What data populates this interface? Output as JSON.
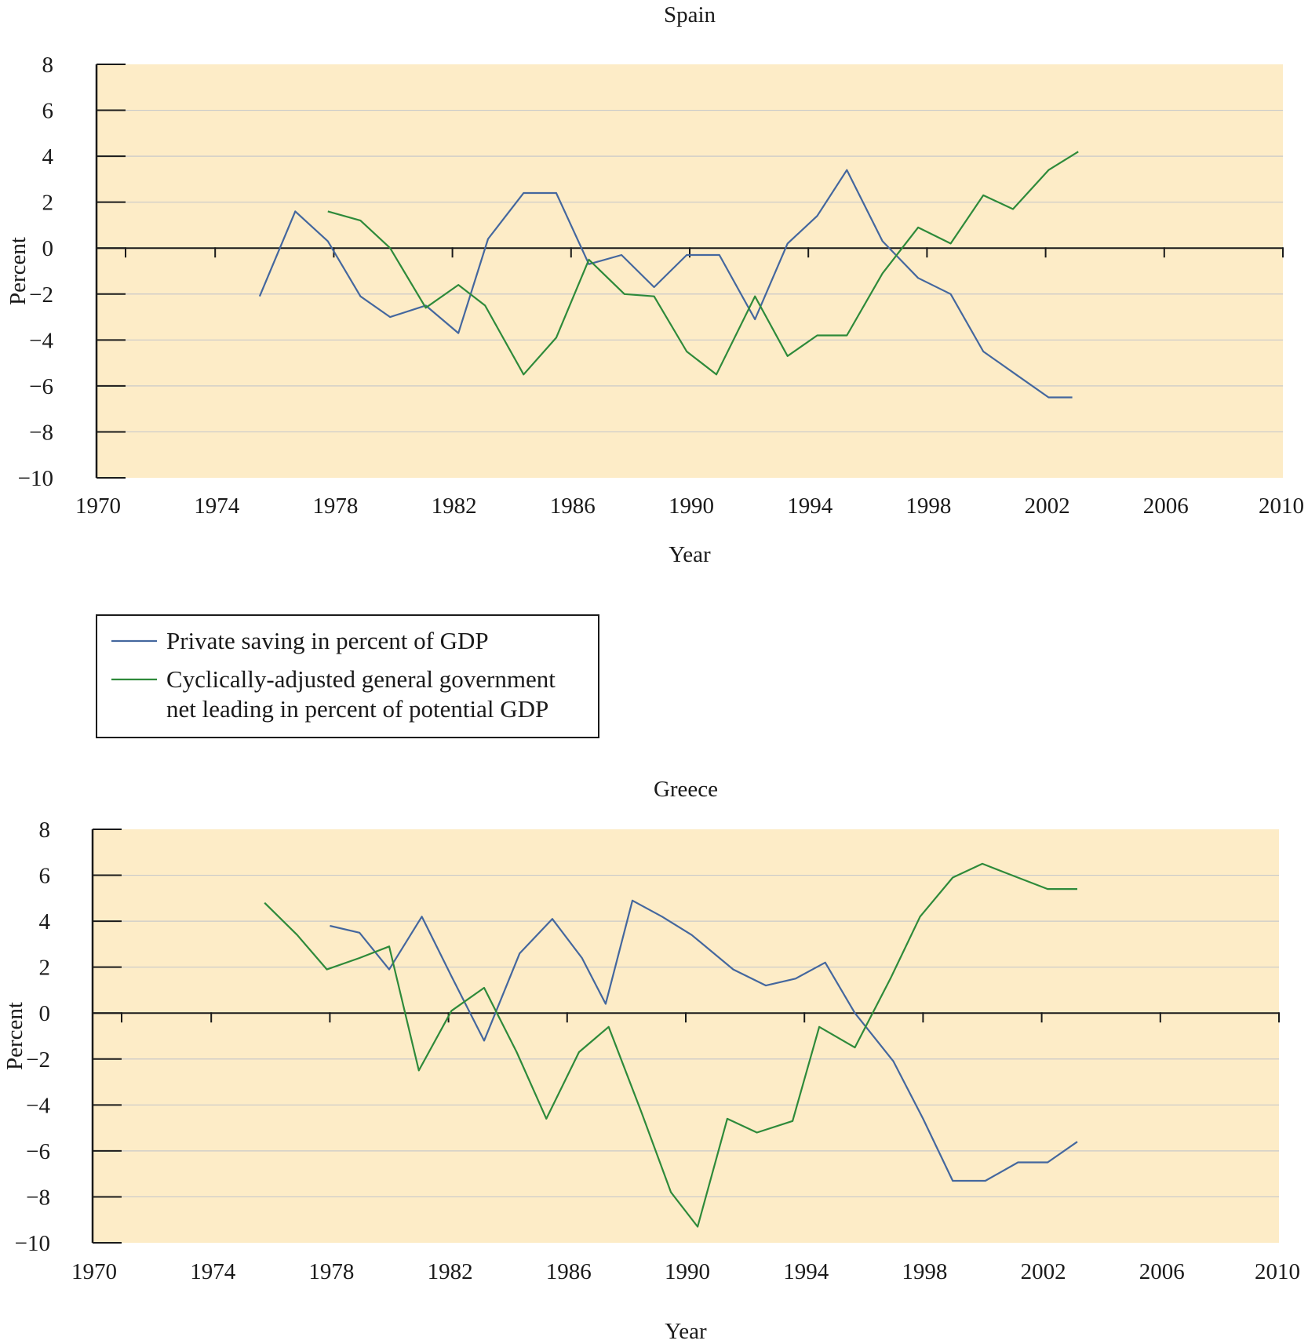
{
  "colors": {
    "private_saving": "#44679e",
    "government_lending": "#2e8a3a",
    "plot_background": "#fdecc7"
  },
  "legend": {
    "items": [
      {
        "series": "private_saving",
        "lines": [
          "Private saving in percent of GDP"
        ]
      },
      {
        "series": "government_lending",
        "lines": [
          "Cyclically-adjusted general government",
          "net leading in percent of potential GDP"
        ]
      }
    ]
  },
  "chart_data": [
    {
      "type": "line",
      "title": "Spain",
      "xlabel": "Year",
      "ylabel": "Percent",
      "xlim": [
        1970,
        2010
      ],
      "ylim": [
        -10,
        8
      ],
      "x_ticks": [
        "1970",
        "1974",
        "1978",
        "1982",
        "1986",
        "1990",
        "1994",
        "1998",
        "2002",
        "2006",
        "2010"
      ],
      "y_ticks": [
        "8",
        "6",
        "4",
        "2",
        "0",
        "−2",
        "−4",
        "−6",
        "−8",
        "−10"
      ],
      "grid": true,
      "series": [
        {
          "key": "private_saving",
          "name": "Private saving in percent of GDP",
          "points": [
            [
              1975.5,
              -2.1
            ],
            [
              1976.7,
              1.6
            ],
            [
              1977.8,
              0.3
            ],
            [
              1978.9,
              -2.1
            ],
            [
              1979.9,
              -3.0
            ],
            [
              1981.1,
              -2.5
            ],
            [
              1982.2,
              -3.7
            ],
            [
              1983.2,
              0.4
            ],
            [
              1984.4,
              2.4
            ],
            [
              1985.5,
              2.4
            ],
            [
              1986.6,
              -0.7
            ],
            [
              1987.7,
              -0.3
            ],
            [
              1988.8,
              -1.7
            ],
            [
              1989.9,
              -0.3
            ],
            [
              1991.0,
              -0.3
            ],
            [
              1992.2,
              -3.1
            ],
            [
              1993.3,
              0.2
            ],
            [
              1994.3,
              1.4
            ],
            [
              1995.3,
              3.4
            ],
            [
              1996.5,
              0.3
            ],
            [
              1997.7,
              -1.3
            ],
            [
              1998.8,
              -2.0
            ],
            [
              1999.9,
              -4.5
            ],
            [
              2001.0,
              -5.5
            ],
            [
              2002.1,
              -6.5
            ],
            [
              2002.9,
              -6.5
            ]
          ]
        },
        {
          "key": "government_lending",
          "name": "Cyclically-adjusted general government net leading in percent of potential GDP",
          "points": [
            [
              1977.8,
              1.6
            ],
            [
              1978.9,
              1.2
            ],
            [
              1979.9,
              0.0
            ],
            [
              1981.1,
              -2.6
            ],
            [
              1982.2,
              -1.6
            ],
            [
              1983.1,
              -2.5
            ],
            [
              1984.4,
              -5.5
            ],
            [
              1985.5,
              -3.9
            ],
            [
              1986.6,
              -0.5
            ],
            [
              1987.8,
              -2.0
            ],
            [
              1988.8,
              -2.1
            ],
            [
              1989.9,
              -4.5
            ],
            [
              1990.9,
              -5.5
            ],
            [
              1992.2,
              -2.1
            ],
            [
              1993.3,
              -4.7
            ],
            [
              1994.3,
              -3.8
            ],
            [
              1995.3,
              -3.8
            ],
            [
              1996.5,
              -1.1
            ],
            [
              1997.7,
              0.9
            ],
            [
              1998.8,
              0.2
            ],
            [
              1999.9,
              2.3
            ],
            [
              2000.9,
              1.7
            ],
            [
              2002.1,
              3.4
            ],
            [
              2003.1,
              4.2
            ]
          ]
        }
      ]
    },
    {
      "type": "line",
      "title": "Greece",
      "xlabel": "Year",
      "ylabel": "Percent",
      "xlim": [
        1970,
        2010
      ],
      "ylim": [
        -10,
        8
      ],
      "x_ticks": [
        "1970",
        "1974",
        "1978",
        "1982",
        "1986",
        "1990",
        "1994",
        "1998",
        "2002",
        "2006",
        "2010"
      ],
      "y_ticks": [
        "8",
        "6",
        "4",
        "2",
        "0",
        "−2",
        "−4",
        "−6",
        "−8",
        "−10"
      ],
      "grid": true,
      "series": [
        {
          "key": "private_saving",
          "name": "Private saving in percent of GDP",
          "points": [
            [
              1978.0,
              3.8
            ],
            [
              1979.0,
              3.5
            ],
            [
              1980.0,
              1.9
            ],
            [
              1981.1,
              4.2
            ],
            [
              1982.1,
              1.6
            ],
            [
              1983.2,
              -1.2
            ],
            [
              1984.4,
              2.6
            ],
            [
              1985.5,
              4.1
            ],
            [
              1986.5,
              2.4
            ],
            [
              1987.3,
              0.4
            ],
            [
              1988.2,
              4.9
            ],
            [
              1989.2,
              4.2
            ],
            [
              1990.2,
              3.4
            ],
            [
              1991.6,
              1.9
            ],
            [
              1992.7,
              1.2
            ],
            [
              1993.7,
              1.5
            ],
            [
              1994.7,
              2.2
            ],
            [
              1995.7,
              0.0
            ],
            [
              1997.0,
              -2.1
            ],
            [
              1998.0,
              -4.6
            ],
            [
              1999.0,
              -7.3
            ],
            [
              2000.1,
              -7.3
            ],
            [
              2001.2,
              -6.5
            ],
            [
              2002.2,
              -6.5
            ],
            [
              2003.2,
              -5.6
            ]
          ]
        },
        {
          "key": "government_lending",
          "name": "Cyclically-adjusted general government net leading in percent of potential GDP",
          "points": [
            [
              1975.8,
              4.8
            ],
            [
              1976.9,
              3.4
            ],
            [
              1977.9,
              1.9
            ],
            [
              1979.0,
              2.4
            ],
            [
              1980.0,
              2.9
            ],
            [
              1981.0,
              -2.5
            ],
            [
              1982.1,
              0.1
            ],
            [
              1983.2,
              1.1
            ],
            [
              1984.3,
              -1.7
            ],
            [
              1985.3,
              -4.6
            ],
            [
              1986.4,
              -1.7
            ],
            [
              1987.4,
              -0.6
            ],
            [
              1988.5,
              -4.3
            ],
            [
              1989.5,
              -7.8
            ],
            [
              1990.4,
              -9.3
            ],
            [
              1991.4,
              -4.6
            ],
            [
              1992.4,
              -5.2
            ],
            [
              1993.6,
              -4.7
            ],
            [
              1994.5,
              -0.6
            ],
            [
              1995.7,
              -1.5
            ],
            [
              1996.9,
              1.5
            ],
            [
              1997.9,
              4.2
            ],
            [
              1999.0,
              5.9
            ],
            [
              2000.0,
              6.5
            ],
            [
              2001.0,
              6.0
            ],
            [
              2002.2,
              5.4
            ],
            [
              2003.2,
              5.4
            ]
          ]
        }
      ]
    }
  ]
}
